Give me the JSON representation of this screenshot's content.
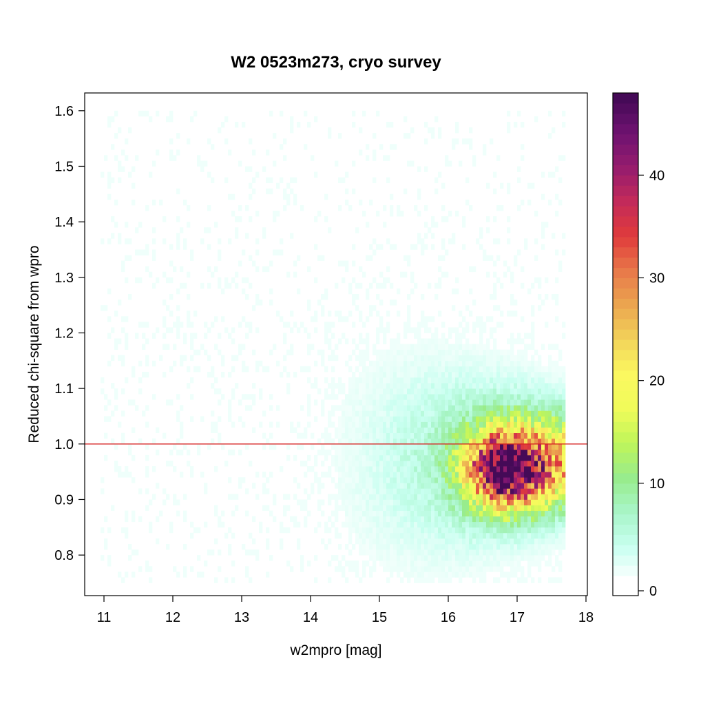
{
  "chart_data": {
    "type": "heatmap",
    "title": "W2 0523m273, cryo survey",
    "xlabel": "w2mpro [mag]",
    "ylabel": "Reduced chi-square from wpro",
    "xlim": [
      10.72,
      18.02
    ],
    "ylim": [
      0.727,
      1.632
    ],
    "x_ticks": [
      11,
      12,
      13,
      14,
      15,
      16,
      17,
      18
    ],
    "y_ticks": [
      0.8,
      0.9,
      1.0,
      1.1,
      1.2,
      1.3,
      1.4,
      1.5,
      1.6
    ],
    "y_tick_labels": [
      "0.8",
      "0.9",
      "1.0",
      "1.1",
      "1.2",
      "1.3",
      "1.4",
      "1.5",
      "1.6"
    ],
    "reference_line": {
      "y": 1.0,
      "color": "#d62020"
    },
    "bin_width_x": 0.05,
    "bin_width_y": 0.01,
    "x_range_data": [
      10.95,
      17.7
    ],
    "y_range_data": [
      0.75,
      1.6
    ],
    "peak_density": {
      "x": 16.85,
      "y": 0.955,
      "count": 48
    },
    "colorbar": {
      "min": 0,
      "max": 48,
      "ticks": [
        0,
        10,
        20,
        30,
        40
      ],
      "stops": [
        "#ffffff",
        "#c8fff0",
        "#a8f5c8",
        "#98ec8c",
        "#bff55a",
        "#f0fb5a",
        "#fbf860",
        "#f2d35a",
        "#eba64f",
        "#e8784a",
        "#e03b3b",
        "#c32a5a",
        "#951c6e",
        "#6e1270",
        "#450a57"
      ]
    }
  }
}
